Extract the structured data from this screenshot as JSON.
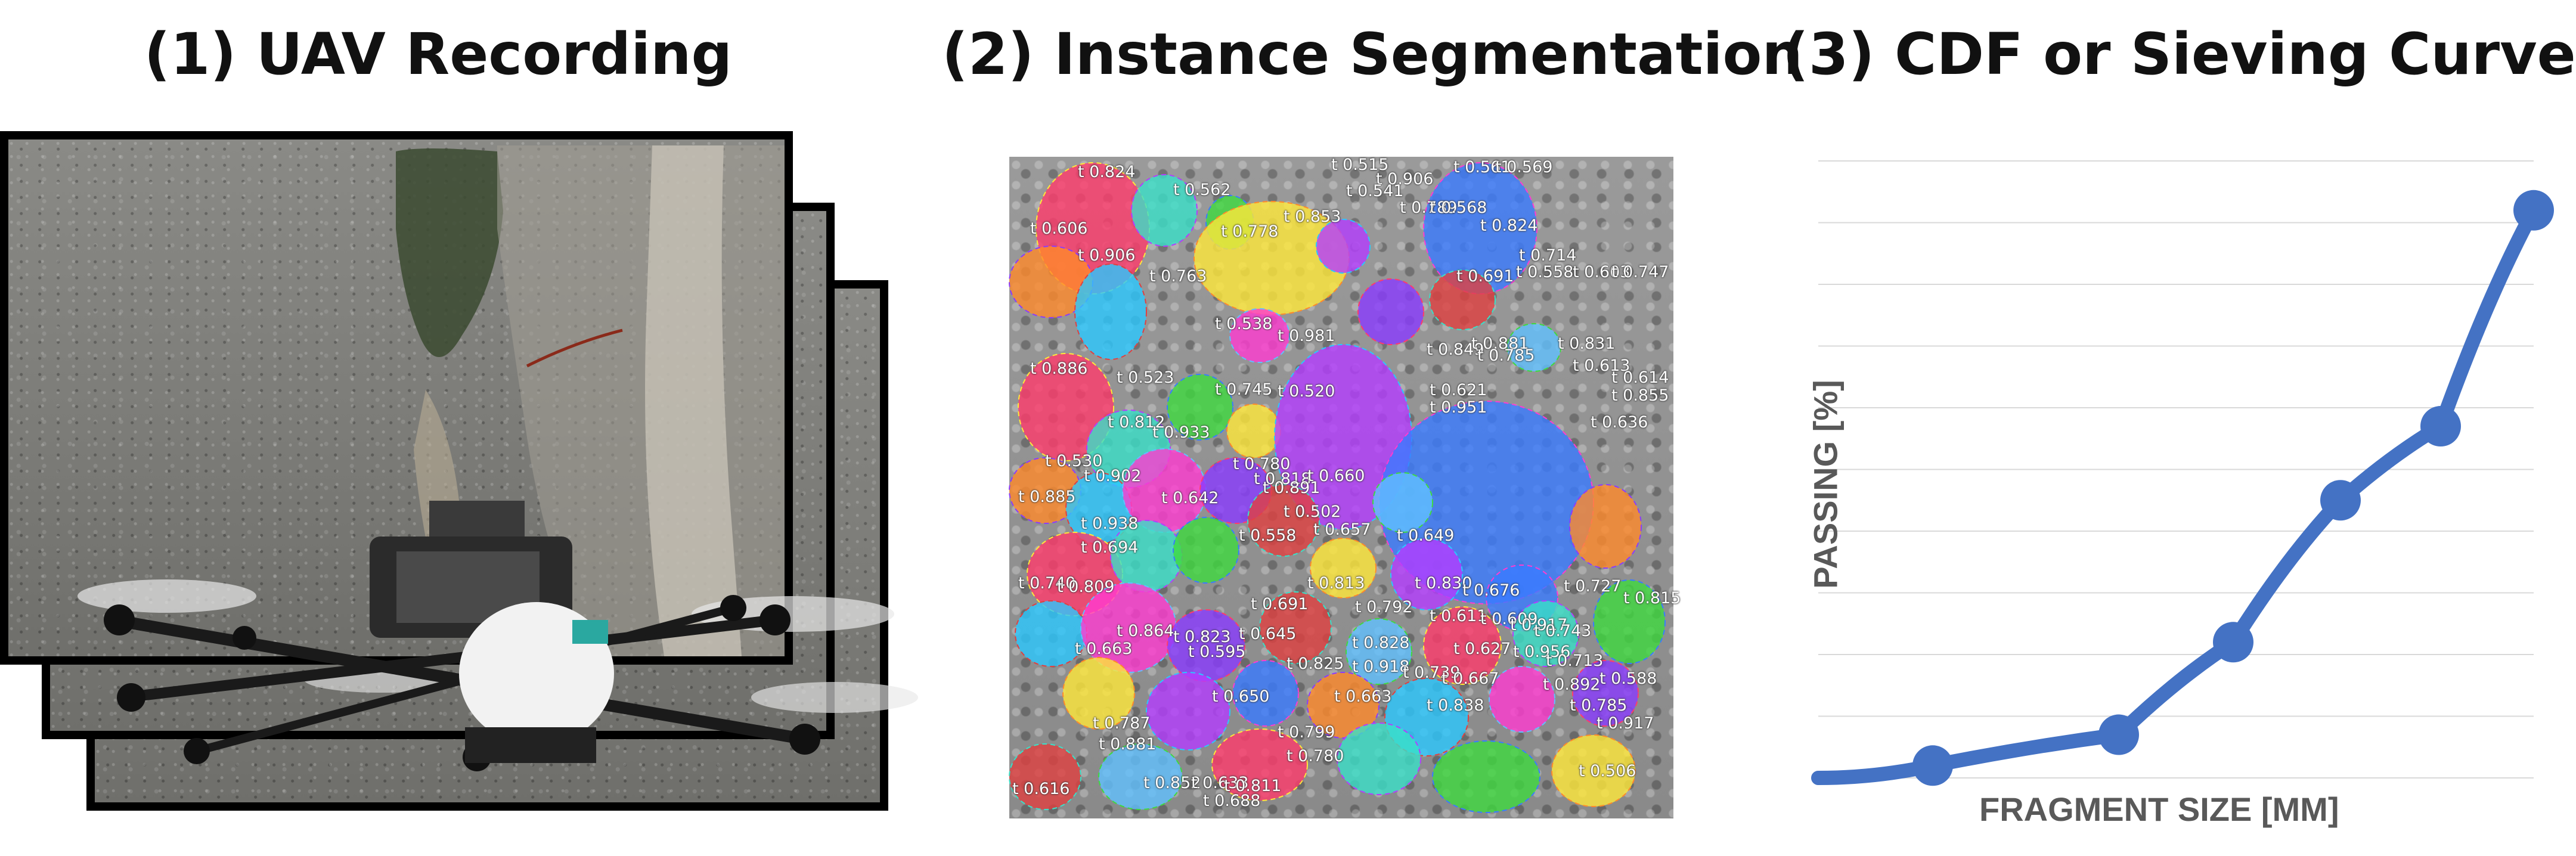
{
  "panels": {
    "uav": {
      "title": "(1) UAV Recording"
    },
    "segmentation": {
      "title": "(2) Instance Segmentation",
      "labels": [
        "t 0.824",
        "t 0.562",
        "t 0.515",
        "t 0.906",
        "t 0.561",
        "t 0.569",
        "t 0.606",
        "t 0.906",
        "t 0.778",
        "t 0.853",
        "t 0.541",
        "t 0.789",
        "t 0.568",
        "t 0.824",
        "t 0.763",
        "t 0.714",
        "t 0.558",
        "t 0.603",
        "t 0.747",
        "t 0.691",
        "t 0.538",
        "t 0.981",
        "t 0.849",
        "t 0.881",
        "t 0.785",
        "t 0.831",
        "t 0.886",
        "t 0.523",
        "t 0.745",
        "t 0.520",
        "t 0.621",
        "t 0.613",
        "t 0.614",
        "t 0.855",
        "t 0.812",
        "t 0.933",
        "t 0.951",
        "t 0.636",
        "t 0.530",
        "t 0.902",
        "t 0.780",
        "t 0.818",
        "t 0.660",
        "t 0.885",
        "t 0.642",
        "t 0.891",
        "t 0.502",
        "t 0.938",
        "t 0.694",
        "t 0.558",
        "t 0.657",
        "t 0.649",
        "t 0.740",
        "t 0.809",
        "t 0.813",
        "t 0.830",
        "t 0.676",
        "t 0.727",
        "t 0.815",
        "t 0.691",
        "t 0.792",
        "t 0.611",
        "t 0.609",
        "t 0.917",
        "t 0.743",
        "t 0.864",
        "t 0.823",
        "t 0.645",
        "t 0.828",
        "t 0.627",
        "t 0.956",
        "t 0.713",
        "t 0.663",
        "t 0.595",
        "t 0.825",
        "t 0.918",
        "t 0.739",
        "t 0.667",
        "t 0.892",
        "t 0.588",
        "t 0.650",
        "t 0.663",
        "t 0.838",
        "t 0.785",
        "t 0.917",
        "t 0.787",
        "t 0.881",
        "t 0.799",
        "t 0.780",
        "t 0.506",
        "t 0.616",
        "t 0.852",
        "t 0.633",
        "t 0.811",
        "t 0.688"
      ]
    },
    "cdf": {
      "title": "(3) CDF or Sieving Curve",
      "ylabel": "PASSING [%]",
      "xlabel": "FRAGMENT SIZE [MM]"
    }
  },
  "colors": {
    "curve": "#4472c4",
    "axis_text": "#595959",
    "title_text": "#111111"
  },
  "chart_data": {
    "type": "line",
    "xlabel": "FRAGMENT SIZE [MM]",
    "ylabel": "PASSING [%]",
    "x": [
      0.16,
      0.42,
      0.58,
      0.73,
      0.87,
      1.0
    ],
    "y": [
      0.02,
      0.07,
      0.22,
      0.45,
      0.57,
      0.92
    ],
    "grid": true,
    "note_values": "relative positions, axes are unscaled in the figure"
  }
}
